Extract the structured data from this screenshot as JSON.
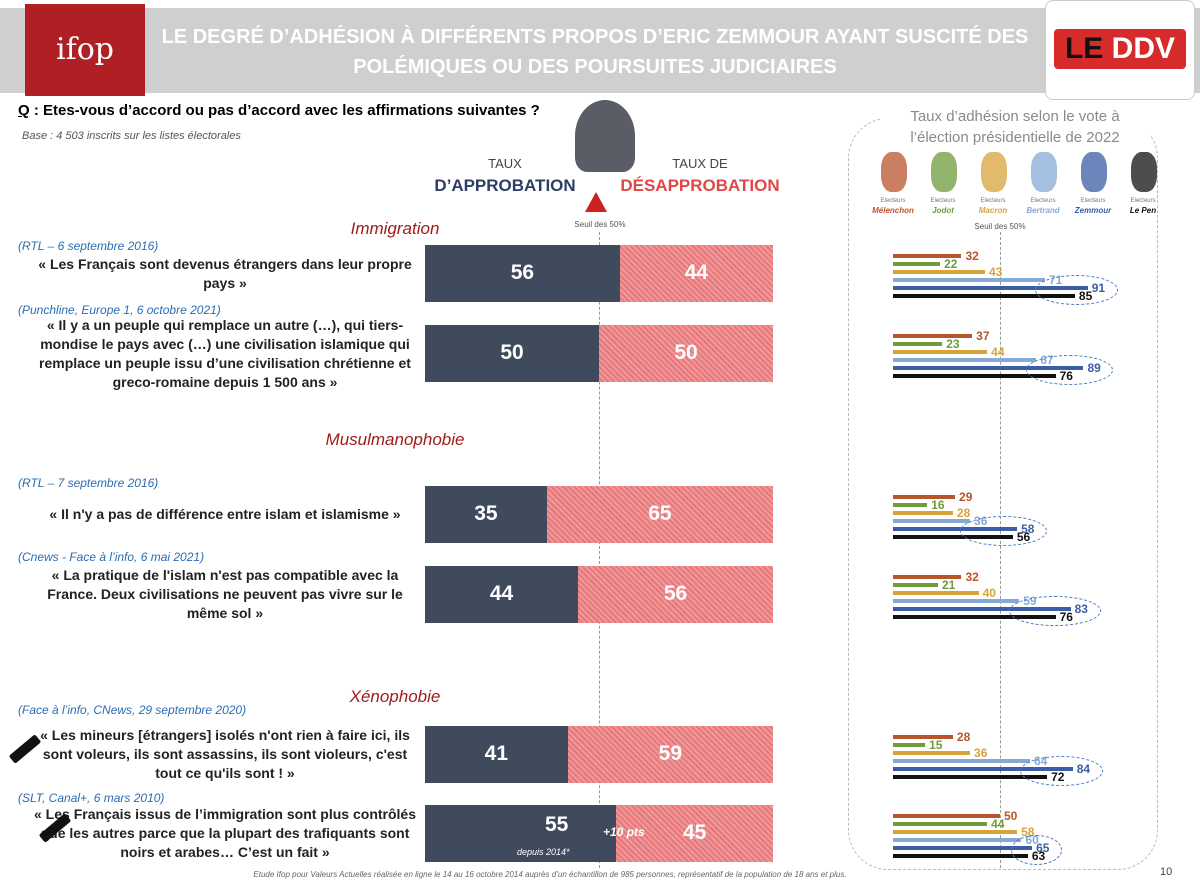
{
  "header": {
    "title": "LE DEGRÉ D’ADHÉSION À DIFFÉRENTS PROPOS D’ERIC ZEMMOUR AYANT SUSCITÉ DES POLÉMIQUES OU DES POURSUITES JUDICIAIRES",
    "logo_left": "ifop",
    "logo_right_1": "LE",
    "logo_right_2": "DDV"
  },
  "question": {
    "q": "Q",
    "text": " : Etes-vous d’accord ou pas d’accord avec les affirmations suivantes ?",
    "base": "Base : 4 503 inscrits sur les listes électorales"
  },
  "legend": {
    "approve_1": "TAUX",
    "approve_2": "D’APPROBATION",
    "disapprove_1": "TAUX DE",
    "disapprove_2": "DÉSAPPROBATION",
    "threshold": "Seuil des 50%",
    "approve_color": "#3f4a5c",
    "disapprove_color": "#e8777a"
  },
  "by_vote": {
    "title": "Taux d’adhésion selon le vote à l’élection présidentielle de 2022",
    "threshold": "Seuil des 50%",
    "voters": [
      {
        "prefix": "Electeurs",
        "name": "Mélenchon",
        "color": "#b8552b"
      },
      {
        "prefix": "Electeurs",
        "name": "Jodot",
        "color": "#6e9b3c"
      },
      {
        "prefix": "Electeurs",
        "name": "Macron",
        "color": "#d8a33a"
      },
      {
        "prefix": "Electeurs",
        "name": "Bertrand",
        "color": "#87a9d6"
      },
      {
        "prefix": "Electeurs",
        "name": "Zemmour",
        "color": "#3b5ea6"
      },
      {
        "prefix": "Electeurs",
        "name": "Le Pen",
        "color": "#111111"
      }
    ]
  },
  "sections": [
    "Immigration",
    "Musulmanophobie",
    "Xénophobie"
  ],
  "items": [
    {
      "section": 0,
      "source": "(RTL – 6 septembre 2016)",
      "quote": "« Les Français sont devenus étrangers dans leur propre pays »",
      "approve": 56,
      "disapprove": 44,
      "by_vote": [
        32,
        22,
        43,
        71,
        91,
        85
      ]
    },
    {
      "section": 0,
      "source": "(Punchline, Europe 1, 6 octobre 2021)",
      "quote": "« Il y a un peuple qui remplace un autre (…), qui tiers-mondise le pays avec (…) une civilisation islamique qui remplace un peuple issu d’une civilisation chrétienne et greco-romaine depuis 1 500 ans »",
      "approve": 50,
      "disapprove": 50,
      "by_vote": [
        37,
        23,
        44,
        67,
        89,
        76
      ]
    },
    {
      "section": 1,
      "source": "(RTL – 7 septembre 2016)",
      "quote": "« Il n'y a pas de différence entre islam et islamisme »",
      "approve": 35,
      "disapprove": 65,
      "by_vote": [
        29,
        16,
        28,
        36,
        58,
        56
      ]
    },
    {
      "section": 1,
      "source": "(Cnews - Face à l’info, 6 mai 2021)",
      "quote": "« La pratique de l'islam n'est pas compatible avec la France. Deux civilisations ne peuvent pas vivre sur le même sol »",
      "approve": 44,
      "disapprove": 56,
      "by_vote": [
        32,
        21,
        40,
        59,
        83,
        76
      ]
    },
    {
      "section": 2,
      "source": "(Face à l’info, CNews, 29 septembre 2020)",
      "quote": "« Les mineurs [étrangers] isolés n'ont rien à faire ici, ils sont voleurs, ils sont assassins, ils sont violeurs, c'est tout ce qu'ils sont ! »",
      "approve": 41,
      "disapprove": 59,
      "by_vote": [
        28,
        15,
        36,
        64,
        84,
        72
      ]
    },
    {
      "section": 2,
      "source": "(SLT, Canal+, 6 mars 2010)",
      "quote": "« Les Français issus de l’immigration sont plus contrôlés que les autres parce que la plupart des trafiquants sont noirs et arabes… C’est un fait »",
      "approve": 55,
      "disapprove": 45,
      "by_vote": [
        50,
        44,
        58,
        60,
        65,
        63
      ],
      "change": "+10 pts",
      "change_note": "depuis 2014*"
    }
  ],
  "footer": {
    "note": "Etude Ifop pour Valeurs Actuelles réalisée en ligne le 14 au 16 octobre 2014 auprès d’un échantillon de 985 personnes, représentatif de la population de 18 ans et plus.",
    "page": "10"
  }
}
